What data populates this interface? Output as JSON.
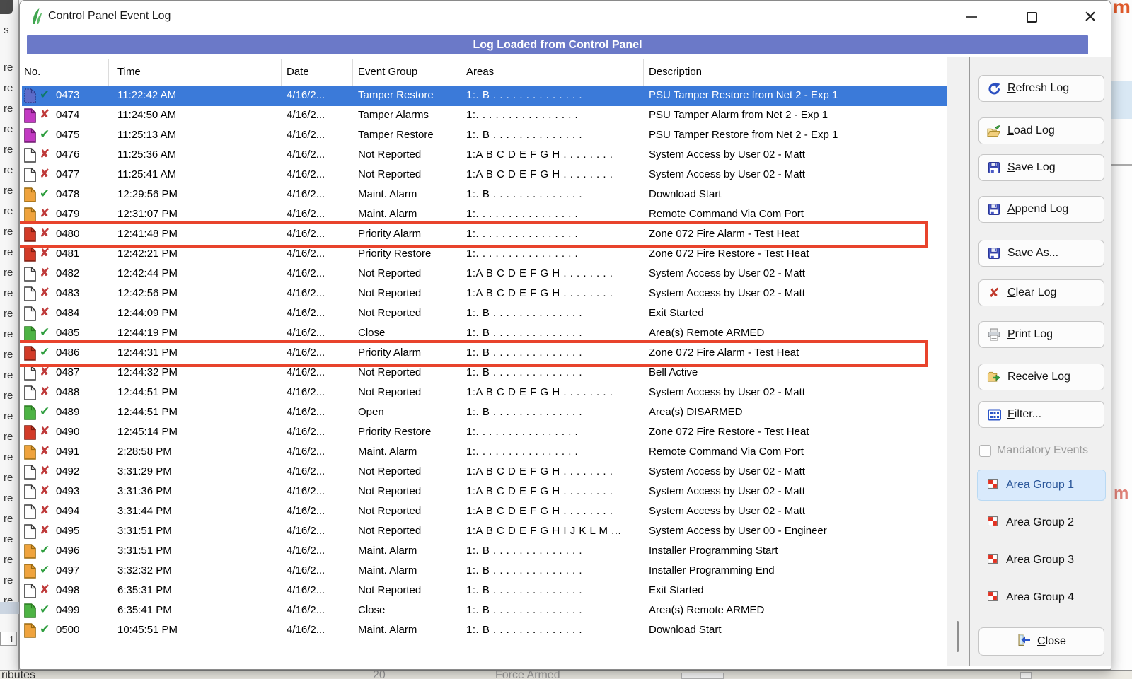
{
  "window": {
    "title": "Control Panel Event Log",
    "banner": "Log Loaded from Control Panel"
  },
  "table": {
    "columns": [
      "No.",
      "Time",
      "Date",
      "Event Group",
      "Areas",
      "Description"
    ],
    "rows": [
      {
        "no": "0473",
        "time": "11:22:42 AM",
        "date": "4/16/2...",
        "group": "Tamper Restore",
        "areas": "1:. B . . . . . . . . . . . . . .",
        "desc": "PSU Tamper Restore from Net 2 - Exp 1",
        "icon": "blue",
        "status": "check",
        "selected": true
      },
      {
        "no": "0474",
        "time": "11:24:50 AM",
        "date": "4/16/2...",
        "group": "Tamper Alarms",
        "areas": "1:. . . . . . . . . . . . . . . .",
        "desc": "PSU Tamper Alarm from Net 2 - Exp 1",
        "icon": "magenta",
        "status": "cross"
      },
      {
        "no": "0475",
        "time": "11:25:13 AM",
        "date": "4/16/2...",
        "group": "Tamper Restore",
        "areas": "1:. B . . . . . . . . . . . . . .",
        "desc": "PSU Tamper Restore from Net 2 - Exp 1",
        "icon": "magenta",
        "status": "check"
      },
      {
        "no": "0476",
        "time": "11:25:36 AM",
        "date": "4/16/2...",
        "group": "Not Reported",
        "areas": "1:A B C D E F G H . . . . . . . .",
        "desc": "System Access by User 02 - Matt",
        "icon": "white",
        "status": "cross"
      },
      {
        "no": "0477",
        "time": "11:25:41 AM",
        "date": "4/16/2...",
        "group": "Not Reported",
        "areas": "1:A B C D E F G H . . . . . . . .",
        "desc": "System Access by User 02 - Matt",
        "icon": "white",
        "status": "cross"
      },
      {
        "no": "0478",
        "time": "12:29:56 PM",
        "date": "4/16/2...",
        "group": "Maint. Alarm",
        "areas": "1:. B . . . . . . . . . . . . . .",
        "desc": "Download Start",
        "icon": "orange",
        "status": "check"
      },
      {
        "no": "0479",
        "time": "12:31:07 PM",
        "date": "4/16/2...",
        "group": "Maint. Alarm",
        "areas": "1:. . . . . . . . . . . . . . . .",
        "desc": "Remote Command Via Com Port",
        "icon": "orange",
        "status": "cross"
      },
      {
        "no": "0480",
        "time": "12:41:48 PM",
        "date": "4/16/2...",
        "group": "Priority Alarm",
        "areas": "1:. . . . . . . . . . . . . . . .",
        "desc": "Zone 072 Fire Alarm - Test Heat",
        "icon": "red",
        "status": "cross",
        "outlined": true
      },
      {
        "no": "0481",
        "time": "12:42:21 PM",
        "date": "4/16/2...",
        "group": "Priority Restore",
        "areas": "1:. . . . . . . . . . . . . . . .",
        "desc": "Zone 072 Fire Restore - Test Heat",
        "icon": "red",
        "status": "cross"
      },
      {
        "no": "0482",
        "time": "12:42:44 PM",
        "date": "4/16/2...",
        "group": "Not Reported",
        "areas": "1:A B C D E F G H . . . . . . . .",
        "desc": "System Access by User 02 - Matt",
        "icon": "white",
        "status": "cross"
      },
      {
        "no": "0483",
        "time": "12:42:56 PM",
        "date": "4/16/2...",
        "group": "Not Reported",
        "areas": "1:A B C D E F G H . . . . . . . .",
        "desc": "System Access by User 02 - Matt",
        "icon": "white",
        "status": "cross"
      },
      {
        "no": "0484",
        "time": "12:44:09 PM",
        "date": "4/16/2...",
        "group": "Not Reported",
        "areas": "1:. B . . . . . . . . . . . . . .",
        "desc": "Exit Started",
        "icon": "white",
        "status": "cross"
      },
      {
        "no": "0485",
        "time": "12:44:19 PM",
        "date": "4/16/2...",
        "group": "Close",
        "areas": "1:. B . . . . . . . . . . . . . .",
        "desc": "Area(s) Remote ARMED",
        "icon": "green",
        "status": "check"
      },
      {
        "no": "0486",
        "time": "12:44:31 PM",
        "date": "4/16/2...",
        "group": "Priority Alarm",
        "areas": "1:. B . . . . . . . . . . . . . .",
        "desc": "Zone 072 Fire Alarm - Test Heat",
        "icon": "red",
        "status": "check",
        "outlined": true
      },
      {
        "no": "0487",
        "time": "12:44:32 PM",
        "date": "4/16/2...",
        "group": "Not Reported",
        "areas": "1:. B . . . . . . . . . . . . . .",
        "desc": "Bell Active",
        "icon": "white",
        "status": "cross"
      },
      {
        "no": "0488",
        "time": "12:44:51 PM",
        "date": "4/16/2...",
        "group": "Not Reported",
        "areas": "1:A B C D E F G H . . . . . . . .",
        "desc": "System Access by User 02 - Matt",
        "icon": "white",
        "status": "cross"
      },
      {
        "no": "0489",
        "time": "12:44:51 PM",
        "date": "4/16/2...",
        "group": "Open",
        "areas": "1:. B . . . . . . . . . . . . . .",
        "desc": "Area(s) DISARMED",
        "icon": "green",
        "status": "check"
      },
      {
        "no": "0490",
        "time": "12:45:14 PM",
        "date": "4/16/2...",
        "group": "Priority Restore",
        "areas": "1:. . . . . . . . . . . . . . . .",
        "desc": "Zone 072 Fire Restore - Test Heat",
        "icon": "red",
        "status": "cross"
      },
      {
        "no": "0491",
        "time": "2:28:58 PM",
        "date": "4/16/2...",
        "group": "Maint. Alarm",
        "areas": "1:. . . . . . . . . . . . . . . .",
        "desc": "Remote Command Via Com Port",
        "icon": "orange",
        "status": "cross"
      },
      {
        "no": "0492",
        "time": "3:31:29 PM",
        "date": "4/16/2...",
        "group": "Not Reported",
        "areas": "1:A B C D E F G H . . . . . . . .",
        "desc": "System Access by User 02 - Matt",
        "icon": "white",
        "status": "cross"
      },
      {
        "no": "0493",
        "time": "3:31:36 PM",
        "date": "4/16/2...",
        "group": "Not Reported",
        "areas": "1:A B C D E F G H . . . . . . . .",
        "desc": "System Access by User 02 - Matt",
        "icon": "white",
        "status": "cross"
      },
      {
        "no": "0494",
        "time": "3:31:44 PM",
        "date": "4/16/2...",
        "group": "Not Reported",
        "areas": "1:A B C D E F G H . . . . . . . .",
        "desc": "System Access by User 02 - Matt",
        "icon": "white",
        "status": "cross"
      },
      {
        "no": "0495",
        "time": "3:31:51 PM",
        "date": "4/16/2...",
        "group": "Not Reported",
        "areas": "1:A B C D E F G H I J K L M ...",
        "desc": "System Access by User 00 - Engineer",
        "icon": "white",
        "status": "cross"
      },
      {
        "no": "0496",
        "time": "3:31:51 PM",
        "date": "4/16/2...",
        "group": "Maint. Alarm",
        "areas": "1:. B . . . . . . . . . . . . . .",
        "desc": "Installer Programming Start",
        "icon": "orange",
        "status": "check"
      },
      {
        "no": "0497",
        "time": "3:32:32 PM",
        "date": "4/16/2...",
        "group": "Maint. Alarm",
        "areas": "1:. B . . . . . . . . . . . . . .",
        "desc": "Installer Programming End",
        "icon": "orange",
        "status": "check"
      },
      {
        "no": "0498",
        "time": "6:35:31 PM",
        "date": "4/16/2...",
        "group": "Not Reported",
        "areas": "1:. B . . . . . . . . . . . . . .",
        "desc": "Exit Started",
        "icon": "white",
        "status": "cross"
      },
      {
        "no": "0499",
        "time": "6:35:41 PM",
        "date": "4/16/2...",
        "group": "Close",
        "areas": "1:. B . . . . . . . . . . . . . .",
        "desc": "Area(s) Remote ARMED",
        "icon": "green",
        "status": "check"
      },
      {
        "no": "0500",
        "time": "10:45:51 PM",
        "date": "4/16/2...",
        "group": "Maint. Alarm",
        "areas": "1:. B . . . . . . . . . . . . . .",
        "desc": "Download Start",
        "icon": "orange",
        "status": "check"
      }
    ]
  },
  "sidebar": {
    "buttons": [
      {
        "label": "Refresh Log",
        "icon": "refresh-icon",
        "mnemonic": 0
      },
      {
        "label": "Load Log",
        "icon": "load-icon",
        "mnemonic": 0
      },
      {
        "label": "Save Log",
        "icon": "save-icon",
        "mnemonic": 0
      },
      {
        "label": "Append Log",
        "icon": "save-icon",
        "mnemonic": 0
      },
      {
        "label": "Save As...",
        "icon": "save-icon",
        "mnemonic": -1
      },
      {
        "label": "Clear Log",
        "icon": "clear-icon",
        "mnemonic": 0
      },
      {
        "label": "Print Log",
        "icon": "print-icon",
        "mnemonic": 0
      },
      {
        "label": "Receive Log",
        "icon": "receive-icon",
        "mnemonic": 0
      },
      {
        "label": "Filter...",
        "icon": "filter-icon",
        "mnemonic": 0
      }
    ],
    "mandatory_events_label": "Mandatory Events",
    "area_groups": [
      {
        "label": "Area Group 1",
        "selected": true
      },
      {
        "label": "Area Group 2",
        "selected": false
      },
      {
        "label": "Area Group 3",
        "selected": false
      },
      {
        "label": "Area Group 4",
        "selected": false
      }
    ],
    "close_label": "Close",
    "close_mnemonic": 0
  },
  "background": {
    "top_fragment": "s",
    "left_fragment": "re",
    "left_fragment_count": 27,
    "spin_fragment": "1",
    "bottom_fragments": [
      "ributes",
      "20",
      "Force Armed"
    ],
    "logo_fragment": "m"
  },
  "colors": {
    "banner": "#6b79c8",
    "selection": "#3b7ad9",
    "annotation_outline": "#e8432c",
    "selected_group_bg": "#d9eafc"
  }
}
